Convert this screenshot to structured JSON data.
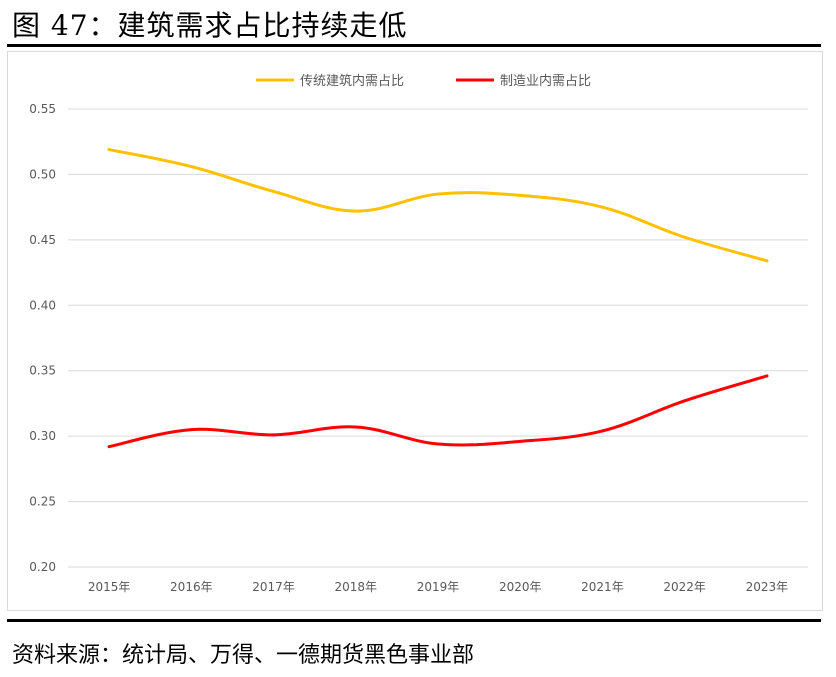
{
  "figure": {
    "title": "图 47：建筑需求占比持续走低",
    "source": "资料来源：统计局、万得、一德期货黑色事业部"
  },
  "chart_data": {
    "type": "line",
    "title": "",
    "xlabel": "",
    "ylabel": "",
    "categories": [
      "2015年",
      "2016年",
      "2017年",
      "2018年",
      "2019年",
      "2020年",
      "2021年",
      "2022年",
      "2023年"
    ],
    "yticks": [
      "0.20",
      "0.25",
      "0.30",
      "0.35",
      "0.40",
      "0.45",
      "0.50",
      "0.55"
    ],
    "ylim": [
      0.2,
      0.55
    ],
    "grid": true,
    "legend_position": "top-center",
    "series": [
      {
        "name": "传统建筑内需占比",
        "color": "#FFC000",
        "values": [
          0.519,
          0.506,
          0.487,
          0.472,
          0.485,
          0.484,
          0.475,
          0.452,
          0.434
        ]
      },
      {
        "name": "制造业内需占比",
        "color": "#FF0000",
        "values": [
          0.292,
          0.305,
          0.301,
          0.307,
          0.294,
          0.296,
          0.304,
          0.327,
          0.346
        ]
      }
    ]
  }
}
